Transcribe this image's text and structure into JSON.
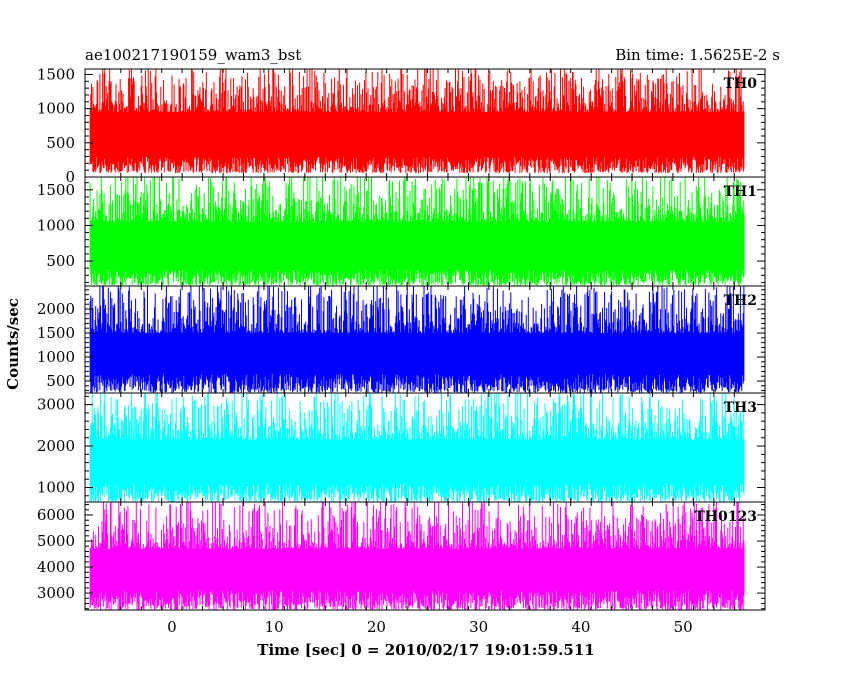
{
  "chart_data": {
    "type": "line",
    "title": "ae100217190159_wam3_bst",
    "subtitle": "Bin time: 1.5625E-2 s",
    "xlabel": "Time [sec] 0 = 2010/02/17 19:01:59.511",
    "ylabel": "Counts/sec",
    "xlim": [
      -8.5,
      58
    ],
    "x_range": [
      -8,
      56
    ],
    "x_ticks": [
      0,
      10,
      20,
      30,
      40,
      50
    ],
    "x_tick_labels": [
      "0",
      "10",
      "20",
      "30",
      "40",
      "50"
    ],
    "grid": false,
    "series": [
      {
        "name": "TH0",
        "color": "#ff0000",
        "ylim": [
          0,
          1580
        ],
        "y_ticks": [
          0,
          500,
          1000,
          1500
        ],
        "y_tick_labels": [
          "0",
          "500",
          "1000",
          "1500"
        ],
        "baseline_range": [
          60,
          300
        ],
        "peak_range": [
          950,
          1580
        ]
      },
      {
        "name": "TH1",
        "color": "#00ff00",
        "ylim": [
          150,
          1680
        ],
        "y_ticks": [
          500,
          1000,
          1500
        ],
        "y_tick_labels": [
          "500",
          "1000",
          "1500"
        ],
        "baseline_range": [
          160,
          380
        ],
        "peak_range": [
          1050,
          1680
        ]
      },
      {
        "name": "TH2",
        "color": "#0000ff",
        "ylim": [
          250,
          2480
        ],
        "y_ticks": [
          500,
          1000,
          1500,
          2000
        ],
        "y_tick_labels": [
          "500",
          "1000",
          "1500",
          "2000"
        ],
        "baseline_range": [
          260,
          650
        ],
        "peak_range": [
          1500,
          2480
        ]
      },
      {
        "name": "TH3",
        "color": "#00ffff",
        "ylim": [
          650,
          3280
        ],
        "y_ticks": [
          1000,
          2000,
          3000
        ],
        "y_tick_labels": [
          "1000",
          "2000",
          "3000"
        ],
        "baseline_range": [
          660,
          1100
        ],
        "peak_range": [
          2150,
          3280
        ]
      },
      {
        "name": "TH0123",
        "color": "#ff00ff",
        "ylim": [
          2350,
          6500
        ],
        "y_ticks": [
          3000,
          4000,
          5000,
          6000
        ],
        "y_tick_labels": [
          "3000",
          "4000",
          "5000",
          "6000"
        ],
        "baseline_range": [
          2350,
          3100
        ],
        "peak_range": [
          4700,
          6500
        ]
      }
    ]
  }
}
